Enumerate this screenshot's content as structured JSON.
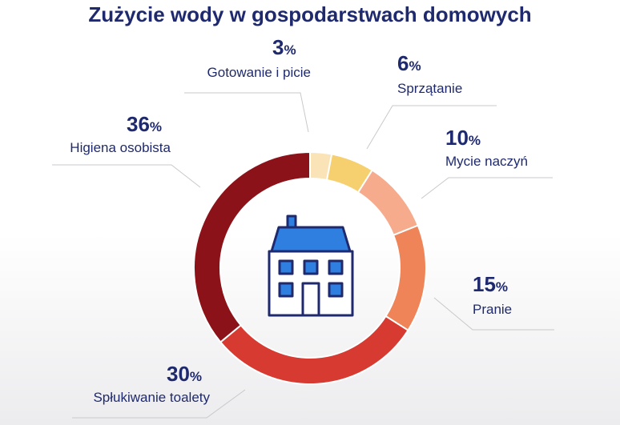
{
  "chart_data": {
    "type": "pie",
    "title": "Zużycie wody w gospodarstwach domowych",
    "unit": "%",
    "categories": [
      "Gotowanie i picie",
      "Sprzątanie",
      "Mycie naczyń",
      "Pranie",
      "Spłukiwanie toalety",
      "Higiena osobista"
    ],
    "values": [
      3,
      6,
      10,
      15,
      30,
      36
    ],
    "colors": [
      "#fbe3b8",
      "#f6cf6e",
      "#f6ab8c",
      "#ef8458",
      "#d63a30",
      "#8c1219"
    ],
    "legend": "none"
  },
  "center_icon": "house-icon"
}
